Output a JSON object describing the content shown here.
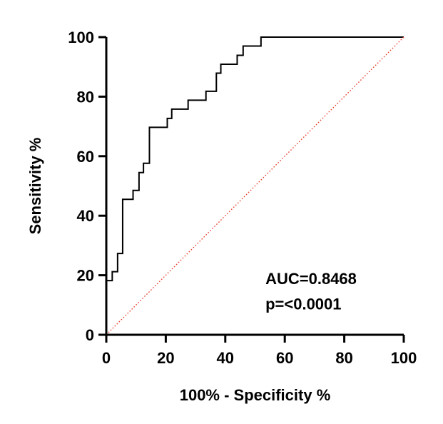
{
  "chart_data": {
    "type": "line",
    "title": "",
    "xlabel": "100% - Specificity %",
    "ylabel": "Sensitivity %",
    "xlim": [
      0,
      100
    ],
    "ylim": [
      0,
      100
    ],
    "xticks": [
      0,
      20,
      40,
      60,
      80,
      100
    ],
    "yticks": [
      0,
      20,
      40,
      60,
      80,
      100
    ],
    "xtick_labels": [
      "0",
      "20",
      "40",
      "60",
      "80",
      "100"
    ],
    "ytick_labels": [
      "0",
      "20",
      "40",
      "60",
      "80",
      "100"
    ],
    "grid": false,
    "series": [
      {
        "style": "step",
        "color": "#000000",
        "x": [
          0,
          0,
          2,
          2,
          3.8,
          3.8,
          5.5,
          5.5,
          9,
          9,
          11,
          11,
          12.5,
          12.5,
          14.5,
          14.5,
          20.5,
          20.5,
          22,
          22,
          27.5,
          27.5,
          33.5,
          33.5,
          37,
          37,
          38.5,
          38.5,
          44,
          44,
          46,
          46,
          52,
          52,
          100
        ],
        "y": [
          0,
          18.2,
          18.2,
          21.2,
          21.2,
          27.3,
          27.3,
          45.5,
          45.5,
          48.5,
          48.5,
          54.5,
          54.5,
          57.6,
          57.6,
          69.7,
          69.7,
          72.7,
          72.7,
          75.8,
          75.8,
          78.8,
          78.8,
          81.8,
          81.8,
          87.9,
          87.9,
          90.9,
          90.9,
          93.9,
          93.9,
          97,
          97,
          100,
          100
        ]
      },
      {
        "style": "dotted",
        "color": "#e8432f",
        "x": [
          0,
          100
        ],
        "y": [
          0,
          100
        ]
      }
    ],
    "annotations": [
      {
        "text": "AUC=0.8468",
        "x": 53.5,
        "y": 17
      },
      {
        "text": "p=<0.0001",
        "x": 53.5,
        "y": 8.5
      }
    ]
  }
}
